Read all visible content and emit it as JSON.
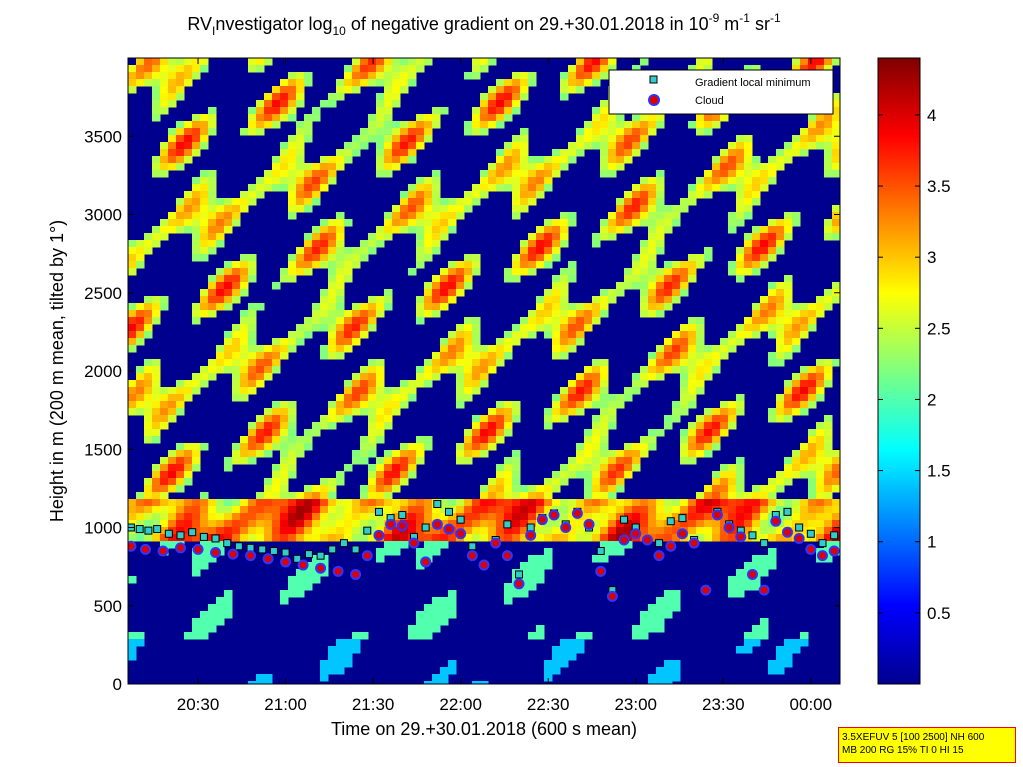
{
  "chart_data": {
    "type": "heatmap",
    "title": {
      "prefix": "RV",
      "prefix_sub": "I",
      "part1": "nvestigator log",
      "part1_sub": "10",
      "part2": " of negative gradient on 29.+30.01.2018 in 10",
      "sup1": "-9",
      "part3": " m",
      "sup2": "-1",
      "part4": " sr",
      "sup3": "-1"
    },
    "xlabel": "Time on 29.+30.01.2018 (600 s mean)",
    "ylabel": "Height in m (200 m mean, tilted by 1°)",
    "x_ticks": [
      "20:30",
      "21:00",
      "21:30",
      "22:00",
      "22:30",
      "23:00",
      "23:30",
      "00:00"
    ],
    "x_tick_minutes": [
      30,
      60,
      90,
      120,
      150,
      180,
      210,
      240
    ],
    "x_range_minutes": [
      6,
      250
    ],
    "y_ticks": [
      "0",
      "500",
      "1000",
      "1500",
      "2000",
      "2500",
      "3000",
      "3500"
    ],
    "y_tick_values": [
      0,
      500,
      1000,
      1500,
      2000,
      2500,
      3000,
      3500
    ],
    "y_range": [
      0,
      4000
    ],
    "colorbar": {
      "ticks": [
        "0.5",
        "1",
        "1.5",
        "2",
        "2.5",
        "3",
        "3.5",
        "4"
      ],
      "tick_values": [
        0.5,
        1,
        1.5,
        2,
        2.5,
        3,
        3.5,
        4
      ],
      "range": [
        0,
        4.4
      ],
      "colormap": "jet"
    },
    "legend": {
      "position": "top-right",
      "entries": [
        {
          "name": "Gradient local minimum",
          "marker": "square",
          "color": "#33cccc"
        },
        {
          "name": "Cloud",
          "marker": "circle",
          "color": "#dd0000",
          "edge": "#3333ff"
        }
      ]
    },
    "series": [
      {
        "name": "Cloud",
        "x": [
          7,
          12,
          18,
          24,
          30,
          36,
          42,
          48,
          54,
          60,
          66,
          72,
          78,
          84,
          88,
          92,
          96,
          100,
          104,
          108,
          112,
          116,
          120,
          124,
          128,
          132,
          136,
          140,
          144,
          148,
          152,
          156,
          160,
          164,
          168,
          172,
          176,
          180,
          184,
          188,
          192,
          196,
          200,
          204,
          208,
          212,
          216,
          220,
          224,
          228,
          232,
          236,
          240,
          244,
          248
        ],
        "y": [
          880,
          860,
          850,
          870,
          860,
          840,
          830,
          820,
          800,
          780,
          760,
          740,
          720,
          700,
          820,
          950,
          1020,
          1010,
          900,
          780,
          1020,
          990,
          960,
          820,
          760,
          900,
          820,
          640,
          950,
          1050,
          1080,
          1000,
          1090,
          1020,
          720,
          560,
          920,
          960,
          920,
          820,
          880,
          960,
          900,
          600,
          1080,
          1000,
          940,
          700,
          600,
          1040,
          970,
          930,
          860,
          820,
          850
        ]
      },
      {
        "name": "Gradient local minimum",
        "x": [
          7,
          10,
          13,
          16,
          20,
          24,
          28,
          32,
          36,
          40,
          44,
          48,
          52,
          56,
          60,
          64,
          68,
          72,
          76,
          80,
          84,
          88,
          92,
          96,
          100,
          104,
          108,
          112,
          116,
          120,
          124,
          128,
          132,
          136,
          140,
          144,
          148,
          152,
          156,
          160,
          164,
          168,
          172,
          176,
          180,
          184,
          188,
          192,
          196,
          200,
          204,
          208,
          212,
          216,
          220,
          224,
          228,
          232,
          236,
          240,
          244,
          248
        ],
        "y": [
          1000,
          990,
          980,
          990,
          960,
          950,
          970,
          940,
          930,
          900,
          880,
          870,
          860,
          850,
          840,
          800,
          830,
          820,
          860,
          900,
          860,
          980,
          1100,
          1060,
          1080,
          940,
          1000,
          1150,
          1100,
          1050,
          880,
          760,
          920,
          1020,
          700,
          1000,
          1060,
          1090,
          1020,
          1100,
          1000,
          850,
          600,
          1050,
          1000,
          920,
          900,
          1040,
          1060,
          920,
          600,
          1100,
          1020,
          980,
          950,
          900,
          1080,
          1100,
          1000,
          960,
          900,
          950
        ]
      }
    ]
  },
  "info_box": {
    "line1": "3.5XEFUV 5 [100 2500] NH 600",
    "line2": "MB 200 RG 15% TI 0 HI 15"
  }
}
